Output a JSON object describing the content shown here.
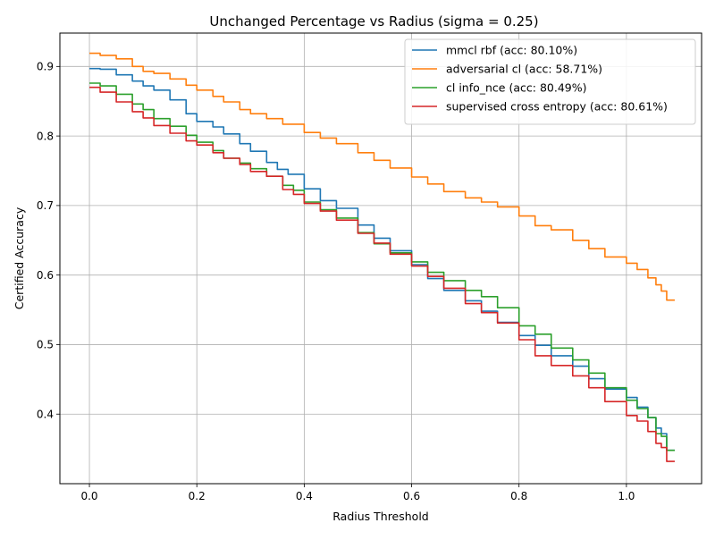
{
  "chart_data": {
    "type": "line",
    "title": "Unchanged Percentage vs Radius (sigma = 0.25)",
    "xlabel": "Radius Threshold",
    "ylabel": "Certified Accuracy",
    "xlim": [
      -0.055,
      1.14
    ],
    "ylim": [
      0.3,
      0.948
    ],
    "xticks": [
      0.0,
      0.2,
      0.4,
      0.6,
      0.8,
      1.0
    ],
    "xtick_labels": [
      "0.0",
      "0.2",
      "0.4",
      "0.6",
      "0.8",
      "1.0"
    ],
    "yticks": [
      0.4,
      0.5,
      0.6,
      0.7,
      0.8,
      0.9
    ],
    "ytick_labels": [
      "0.4",
      "0.5",
      "0.6",
      "0.7",
      "0.8",
      "0.9"
    ],
    "grid": true,
    "legend_position": "top-right",
    "series": [
      {
        "name": "mmcl rbf (acc: 80.10%)",
        "color": "#1f77b4",
        "x": [
          0.0,
          0.02,
          0.05,
          0.08,
          0.1,
          0.12,
          0.15,
          0.18,
          0.2,
          0.23,
          0.25,
          0.28,
          0.3,
          0.33,
          0.35,
          0.37,
          0.4,
          0.43,
          0.46,
          0.5,
          0.53,
          0.56,
          0.6,
          0.63,
          0.66,
          0.7,
          0.73,
          0.76,
          0.8,
          0.83,
          0.86,
          0.9,
          0.93,
          0.96,
          1.0,
          1.02,
          1.04,
          1.055,
          1.065,
          1.075,
          1.09
        ],
        "y": [
          0.897,
          0.896,
          0.888,
          0.879,
          0.872,
          0.866,
          0.852,
          0.832,
          0.821,
          0.813,
          0.803,
          0.789,
          0.778,
          0.762,
          0.752,
          0.745,
          0.724,
          0.707,
          0.696,
          0.672,
          0.653,
          0.635,
          0.615,
          0.595,
          0.578,
          0.563,
          0.548,
          0.532,
          0.513,
          0.499,
          0.484,
          0.469,
          0.451,
          0.436,
          0.424,
          0.41,
          0.395,
          0.38,
          0.372,
          0.348,
          0.348
        ]
      },
      {
        "name": "adversarial cl (acc: 58.71%)",
        "color": "#ff7f0e",
        "x": [
          0.0,
          0.02,
          0.05,
          0.08,
          0.1,
          0.12,
          0.15,
          0.18,
          0.2,
          0.23,
          0.25,
          0.28,
          0.3,
          0.33,
          0.36,
          0.4,
          0.43,
          0.46,
          0.5,
          0.53,
          0.56,
          0.6,
          0.63,
          0.66,
          0.7,
          0.73,
          0.76,
          0.8,
          0.83,
          0.86,
          0.9,
          0.93,
          0.96,
          1.0,
          1.02,
          1.04,
          1.055,
          1.065,
          1.075,
          1.09
        ],
        "y": [
          0.919,
          0.916,
          0.911,
          0.9,
          0.893,
          0.89,
          0.882,
          0.873,
          0.866,
          0.857,
          0.849,
          0.838,
          0.832,
          0.825,
          0.817,
          0.805,
          0.797,
          0.789,
          0.776,
          0.765,
          0.754,
          0.741,
          0.731,
          0.72,
          0.711,
          0.705,
          0.698,
          0.685,
          0.671,
          0.665,
          0.65,
          0.638,
          0.626,
          0.617,
          0.608,
          0.596,
          0.586,
          0.577,
          0.564,
          0.564
        ]
      },
      {
        "name": "cl info_nce (acc: 80.49%)",
        "color": "#2ca02c",
        "x": [
          0.0,
          0.02,
          0.05,
          0.08,
          0.1,
          0.12,
          0.15,
          0.18,
          0.2,
          0.23,
          0.25,
          0.28,
          0.3,
          0.33,
          0.36,
          0.38,
          0.4,
          0.43,
          0.46,
          0.5,
          0.53,
          0.56,
          0.6,
          0.63,
          0.66,
          0.7,
          0.73,
          0.76,
          0.8,
          0.83,
          0.86,
          0.9,
          0.93,
          0.96,
          1.0,
          1.02,
          1.04,
          1.055,
          1.065,
          1.075,
          1.09
        ],
        "y": [
          0.876,
          0.872,
          0.86,
          0.846,
          0.838,
          0.825,
          0.814,
          0.801,
          0.791,
          0.779,
          0.768,
          0.761,
          0.753,
          0.742,
          0.729,
          0.722,
          0.705,
          0.694,
          0.682,
          0.661,
          0.645,
          0.632,
          0.619,
          0.604,
          0.592,
          0.578,
          0.569,
          0.553,
          0.527,
          0.515,
          0.495,
          0.478,
          0.459,
          0.438,
          0.42,
          0.408,
          0.395,
          0.372,
          0.368,
          0.348,
          0.348
        ]
      },
      {
        "name": "supervised cross entropy (acc: 80.61%)",
        "color": "#d62728",
        "x": [
          0.0,
          0.02,
          0.05,
          0.08,
          0.1,
          0.12,
          0.15,
          0.18,
          0.2,
          0.23,
          0.25,
          0.28,
          0.3,
          0.33,
          0.36,
          0.38,
          0.4,
          0.43,
          0.46,
          0.5,
          0.53,
          0.56,
          0.6,
          0.63,
          0.66,
          0.7,
          0.73,
          0.76,
          0.8,
          0.83,
          0.86,
          0.9,
          0.93,
          0.96,
          1.0,
          1.02,
          1.04,
          1.055,
          1.065,
          1.075,
          1.09
        ],
        "y": [
          0.87,
          0.863,
          0.849,
          0.835,
          0.826,
          0.815,
          0.804,
          0.793,
          0.787,
          0.776,
          0.768,
          0.759,
          0.749,
          0.742,
          0.723,
          0.716,
          0.703,
          0.692,
          0.679,
          0.66,
          0.646,
          0.63,
          0.613,
          0.598,
          0.581,
          0.559,
          0.546,
          0.531,
          0.507,
          0.484,
          0.47,
          0.455,
          0.438,
          0.418,
          0.398,
          0.39,
          0.375,
          0.358,
          0.352,
          0.332,
          0.332
        ]
      }
    ]
  }
}
